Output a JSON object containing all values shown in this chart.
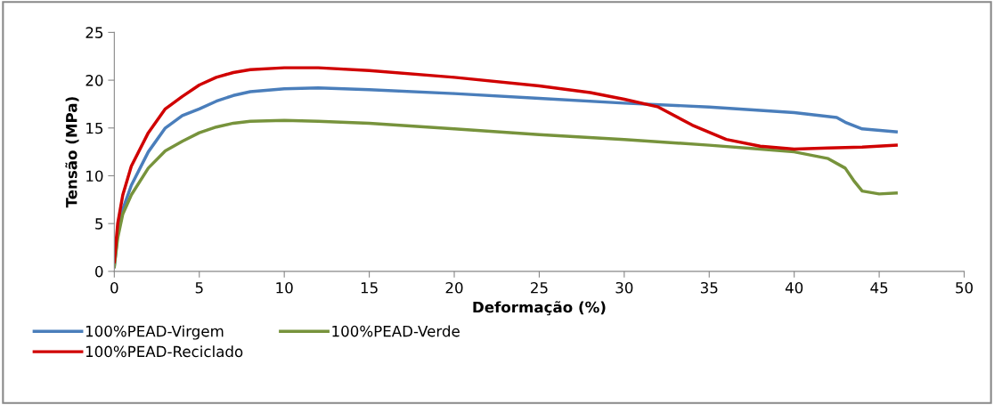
{
  "chart_data": {
    "type": "line",
    "xlabel": "Deformação (%)",
    "ylabel": "Tensão (MPa)",
    "xlim": [
      0,
      50
    ],
    "xticks": [
      0,
      5,
      10,
      15,
      20,
      25,
      30,
      35,
      40,
      45,
      50
    ],
    "ylim": [
      0,
      25
    ],
    "yticks": [
      0,
      5,
      10,
      15,
      20,
      25
    ],
    "grid": false,
    "legend": "bottom",
    "marker": "none",
    "line_style": "solid",
    "series": [
      {
        "name": "100%PEAD-Virgem",
        "color": "#4a7ebb",
        "x": [
          0,
          0.2,
          0.5,
          1,
          2,
          3,
          4,
          5,
          6,
          7,
          8,
          10,
          12,
          15,
          20,
          25,
          30,
          35,
          40,
          42.5,
          43,
          44,
          46
        ],
        "values": [
          0.5,
          4,
          6.5,
          9,
          12.5,
          15,
          16.3,
          17,
          17.8,
          18.4,
          18.8,
          19.1,
          19.2,
          19,
          18.6,
          18.1,
          17.6,
          17.2,
          16.6,
          16.1,
          15.6,
          14.9,
          14.6
        ]
      },
      {
        "name": "100%PEAD-Verde",
        "color": "#77933c",
        "x": [
          0,
          0.2,
          0.5,
          1,
          2,
          3,
          4,
          5,
          6,
          7,
          8,
          10,
          12,
          15,
          20,
          25,
          30,
          35,
          38,
          40,
          42,
          43,
          43.5,
          44,
          45,
          46
        ],
        "values": [
          0.5,
          3.5,
          6,
          8,
          10.8,
          12.6,
          13.6,
          14.5,
          15.1,
          15.5,
          15.7,
          15.8,
          15.7,
          15.5,
          14.9,
          14.3,
          13.8,
          13.2,
          12.8,
          12.5,
          11.8,
          10.8,
          9.5,
          8.4,
          8.1,
          8.2
        ]
      },
      {
        "name": "100%PEAD-Reciclado",
        "color": "#d00000",
        "x": [
          0,
          0.2,
          0.5,
          1,
          2,
          3,
          4,
          5,
          6,
          7,
          8,
          10,
          12,
          15,
          20,
          25,
          28,
          30,
          32,
          34,
          36,
          38,
          40,
          42,
          44,
          46
        ],
        "values": [
          1,
          5,
          8,
          11,
          14.5,
          17,
          18.3,
          19.5,
          20.3,
          20.8,
          21.1,
          21.3,
          21.3,
          21,
          20.3,
          19.4,
          18.7,
          18,
          17.2,
          15.3,
          13.8,
          13.1,
          12.8,
          12.9,
          13,
          13.2
        ]
      }
    ]
  }
}
